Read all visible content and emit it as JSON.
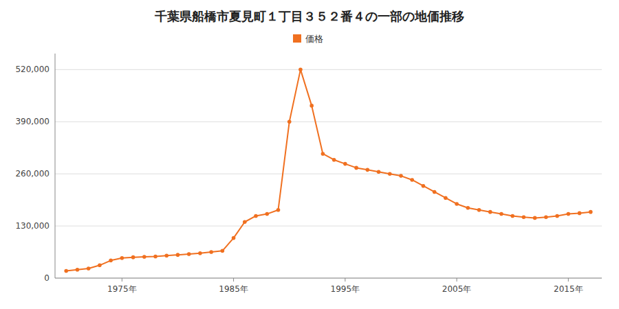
{
  "chart_data": {
    "type": "line",
    "title": "千葉県船橋市夏見町１丁目３５２番４の一部の地価推移",
    "x": [
      1970,
      1971,
      1972,
      1973,
      1974,
      1975,
      1976,
      1977,
      1978,
      1979,
      1980,
      1981,
      1982,
      1983,
      1984,
      1985,
      1986,
      1987,
      1988,
      1989,
      1990,
      1991,
      1992,
      1993,
      1994,
      1995,
      1996,
      1997,
      1998,
      1999,
      2000,
      2001,
      2002,
      2003,
      2004,
      2005,
      2006,
      2007,
      2008,
      2009,
      2010,
      2011,
      2012,
      2013,
      2014,
      2015,
      2016,
      2017
    ],
    "series": [
      {
        "name": "価格",
        "color": "#f07020",
        "marker": "circle",
        "values": [
          18000,
          21000,
          24000,
          32000,
          44000,
          50000,
          52000,
          53000,
          54000,
          56000,
          58000,
          60000,
          62000,
          65000,
          68000,
          100000,
          140000,
          155000,
          160000,
          170000,
          390000,
          520000,
          430000,
          310000,
          295000,
          285000,
          275000,
          270000,
          265000,
          260000,
          255000,
          245000,
          230000,
          215000,
          200000,
          185000,
          175000,
          170000,
          165000,
          160000,
          155000,
          152000,
          150000,
          152000,
          155000,
          160000,
          162000,
          165000
        ]
      }
    ],
    "xlim": [
      1969,
      2018
    ],
    "xticks": [
      {
        "value": 1975,
        "label": "1975年"
      },
      {
        "value": 1985,
        "label": "1985年"
      },
      {
        "value": 1995,
        "label": "1995年"
      },
      {
        "value": 2005,
        "label": "2005年"
      },
      {
        "value": 2015,
        "label": "2015年"
      }
    ],
    "ylim": [
      0,
      560000
    ],
    "yticks": [
      0,
      {
        "value": 130000,
        "label": "130,000"
      },
      {
        "value": 260000,
        "label": "260,000"
      },
      {
        "value": 390000,
        "label": "390,000"
      },
      {
        "value": 520000,
        "label": "520,000"
      }
    ],
    "grid": "y",
    "legend": "top"
  }
}
